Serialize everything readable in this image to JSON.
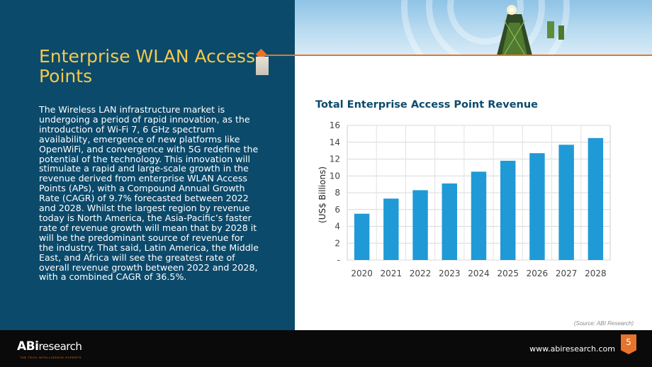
{
  "page": {
    "title": "Enterprise WLAN Access Points",
    "body": "The Wireless LAN infrastructure market is undergoing a period of rapid innovation, as the introduction of Wi-Fi 7, 6 GHz spectrum availability, emergence of new platforms like OpenWiFi, and convergence with 5G redefine the potential of the technology. This innovation will stimulate a rapid and large-scale growth in the revenue derived from enterprise WLAN Access Points (APs), with a Compound Annual Growth Rate (CAGR) of 9.7% forecasted between 2022 and 2028. Whilst the largest region by revenue today is North America, the Asia-Pacific’s faster rate of revenue growth will mean that by 2028 it will be the predominant source of revenue for the industry. That said, Latin America, the Middle East, and Africa will see the greatest rate of overall revenue growth between 2022 and 2028, with a combined CAGR of 36.5%.",
    "source": "(Source: ABI Research)"
  },
  "chart_data": {
    "type": "bar",
    "title": "Total Enterprise Access Point Revenue",
    "xlabel": "",
    "ylabel": "(US$ Billions)",
    "categories": [
      "2020",
      "2021",
      "2022",
      "2023",
      "2024",
      "2025",
      "2026",
      "2027",
      "2028"
    ],
    "values": [
      5.5,
      7.3,
      8.3,
      9.1,
      10.5,
      11.8,
      12.7,
      13.7,
      14.5
    ],
    "ylim": [
      0,
      16
    ],
    "yticks": [
      "-",
      "2",
      "4",
      "6",
      "8",
      "10",
      "12",
      "14",
      "16"
    ],
    "grid": true,
    "legend": "none",
    "bar_color": "#1f9ad6"
  },
  "footer": {
    "logo_bold": "ABi",
    "logo_light": "research",
    "tagline": "THE TECH INTELLIGENCE EXPERTS",
    "website": "www.abiresearch.com",
    "page_number": "5"
  },
  "colors": {
    "panel": "#0b4a6b",
    "title": "#f5c84c",
    "accent": "#e8732a"
  }
}
